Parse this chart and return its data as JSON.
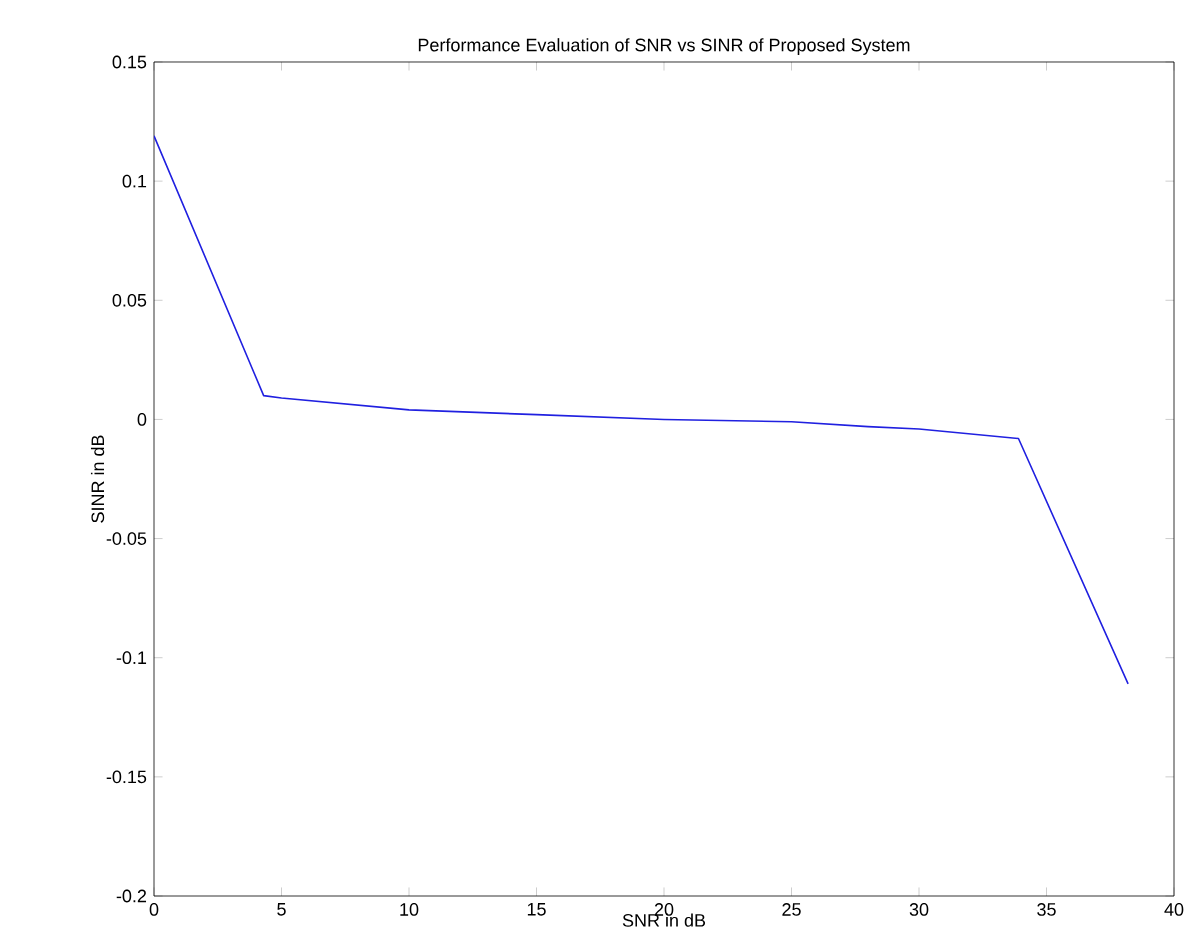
{
  "chart_data": {
    "type": "line",
    "title": "Performance Evaluation of SNR vs SINR of Proposed System",
    "xlabel": "SNR in dB",
    "ylabel": "SINR in dB",
    "x": [
      0,
      4.3,
      5,
      10,
      15,
      20,
      25,
      28,
      30,
      33.9,
      38.2
    ],
    "series": [
      {
        "color": "#2020e0",
        "values": [
          0.119,
          0.01,
          0.009,
          0.004,
          0.002,
          0.0,
          -0.001,
          -0.003,
          -0.004,
          -0.008,
          -0.111
        ]
      }
    ],
    "xlim": [
      0,
      40
    ],
    "xticks": [
      0,
      5,
      10,
      15,
      20,
      25,
      30,
      35,
      40
    ],
    "ylim": [
      -0.2,
      0.15
    ],
    "yticks": [
      -0.2,
      -0.15,
      -0.1,
      -0.05,
      0,
      0.05,
      0.1,
      0.15
    ],
    "grid": false,
    "marker": "none",
    "line_style": "solid"
  }
}
